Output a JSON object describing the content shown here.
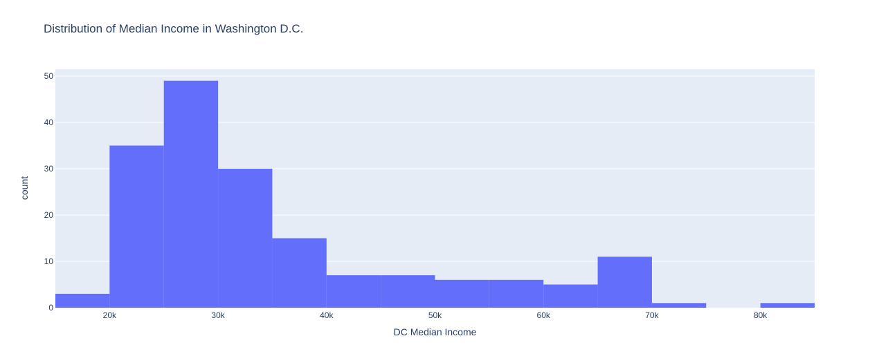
{
  "chart_data": {
    "type": "bar",
    "subtype": "histogram",
    "title": "Distribution of Median Income in Washington D.C.",
    "xlabel": "DC Median Income",
    "ylabel": "count",
    "bins": [
      {
        "start": 15000,
        "end": 20000,
        "count": 3
      },
      {
        "start": 20000,
        "end": 25000,
        "count": 35
      },
      {
        "start": 25000,
        "end": 30000,
        "count": 49
      },
      {
        "start": 30000,
        "end": 35000,
        "count": 30
      },
      {
        "start": 35000,
        "end": 40000,
        "count": 15
      },
      {
        "start": 40000,
        "end": 45000,
        "count": 7
      },
      {
        "start": 45000,
        "end": 50000,
        "count": 7
      },
      {
        "start": 50000,
        "end": 55000,
        "count": 6
      },
      {
        "start": 55000,
        "end": 60000,
        "count": 6
      },
      {
        "start": 60000,
        "end": 65000,
        "count": 5
      },
      {
        "start": 65000,
        "end": 70000,
        "count": 11
      },
      {
        "start": 70000,
        "end": 75000,
        "count": 1
      },
      {
        "start": 75000,
        "end": 80000,
        "count": 0
      },
      {
        "start": 80000,
        "end": 85000,
        "count": 1
      }
    ],
    "xlim": [
      15000,
      85000
    ],
    "ylim": [
      0,
      51.5
    ],
    "x_ticks": [
      20000,
      30000,
      40000,
      50000,
      60000,
      70000,
      80000
    ],
    "x_tick_labels": [
      "20k",
      "30k",
      "40k",
      "50k",
      "60k",
      "70k",
      "80k"
    ],
    "y_ticks": [
      0,
      10,
      20,
      30,
      40,
      50
    ],
    "y_tick_labels": [
      "0",
      "10",
      "20",
      "30",
      "40",
      "50"
    ],
    "grid": true,
    "legend": "none",
    "colors": {
      "bar": "#636efa",
      "plot_background": "#e5ecf6",
      "grid": "#ffffff",
      "text": "#2a3f5f"
    }
  }
}
